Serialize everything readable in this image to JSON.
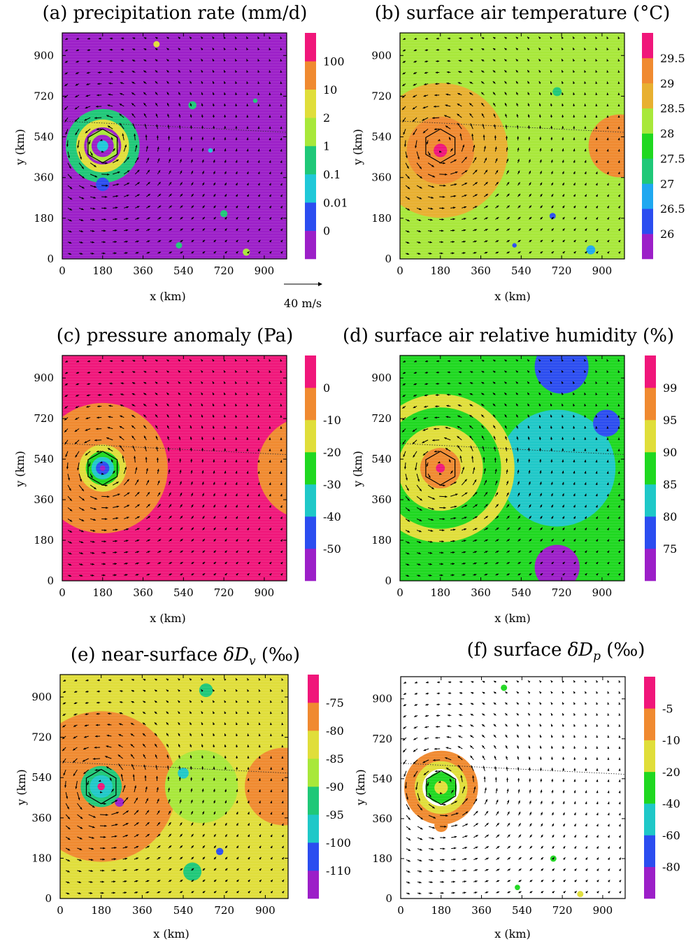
{
  "figure": {
    "reference_vector_label": "40 m/s",
    "reference_vector_speed": 40,
    "vortex_center_km": [
      180,
      500
    ]
  },
  "chart_data": [
    {
      "id": "a",
      "type": "heatmap",
      "title": "(a) precipitation rate (mm/d)",
      "title_text": "(a) precipitation rate (mm/d)",
      "xlabel": "x (km)",
      "ylabel": "y (km)",
      "xlim": [
        0,
        1000
      ],
      "ylim": [
        0,
        1000
      ],
      "xticks": [
        "0",
        "180",
        "360",
        "540",
        "720",
        "900"
      ],
      "yticks": [
        "0",
        "180",
        "360",
        "540",
        "720",
        "900"
      ],
      "colorbar": {
        "labels": [
          "0",
          "0.01",
          "0.1",
          "1",
          "2",
          "10",
          "100"
        ],
        "colors": [
          "#9c1fc8",
          "#2b4df0",
          "#1fc8d8",
          "#1fc878",
          "#a8e83a",
          "#e0de3a",
          "#f08a30",
          "#f0167a"
        ]
      },
      "background_level": 0,
      "features": [
        {
          "kind": "ring",
          "x": 180,
          "y": 500,
          "r": 140,
          "level": 3
        },
        {
          "kind": "ring",
          "x": 180,
          "y": 500,
          "r": 100,
          "level": 5
        },
        {
          "kind": "ring",
          "x": 180,
          "y": 500,
          "r": 60,
          "level": 4
        },
        {
          "kind": "blob",
          "x": 180,
          "y": 500,
          "r": 25,
          "level": 2
        },
        {
          "kind": "blob",
          "x": 180,
          "y": 330,
          "r": 30,
          "level": 1
        },
        {
          "kind": "blob",
          "x": 580,
          "y": 680,
          "r": 18,
          "level": 3
        },
        {
          "kind": "blob",
          "x": 420,
          "y": 950,
          "r": 14,
          "level": 5
        },
        {
          "kind": "blob",
          "x": 720,
          "y": 200,
          "r": 16,
          "level": 3
        },
        {
          "kind": "blob",
          "x": 520,
          "y": 60,
          "r": 14,
          "level": 3
        },
        {
          "kind": "blob",
          "x": 820,
          "y": 30,
          "r": 16,
          "level": 4
        },
        {
          "kind": "blob",
          "x": 660,
          "y": 480,
          "r": 10,
          "level": 2
        },
        {
          "kind": "blob",
          "x": 860,
          "y": 700,
          "r": 10,
          "level": 3
        }
      ]
    },
    {
      "id": "b",
      "type": "heatmap",
      "title": "(b) surface air temperature (°C)",
      "title_text": "(b) surface air temperature (°C)",
      "xlabel": "x (km)",
      "ylabel": "y (km)",
      "xlim": [
        0,
        1000
      ],
      "ylim": [
        0,
        1000
      ],
      "xticks": [
        "0",
        "180",
        "360",
        "540",
        "720",
        "900"
      ],
      "yticks": [
        "0",
        "180",
        "360",
        "540",
        "720",
        "900"
      ],
      "colorbar": {
        "labels": [
          "26",
          "26.5",
          "27",
          "27.5",
          "28",
          "28.5",
          "29",
          "29.5"
        ],
        "colors": [
          "#9c1fc8",
          "#2b4df0",
          "#1fa8f0",
          "#1fc878",
          "#1fd820",
          "#a8e83a",
          "#e8b030",
          "#f08a30",
          "#f0167a"
        ]
      },
      "background_level": 5,
      "features": [
        {
          "kind": "blob",
          "x": 180,
          "y": 480,
          "r": 300,
          "level": 6
        },
        {
          "kind": "blob",
          "x": 180,
          "y": 480,
          "r": 150,
          "level": 7
        },
        {
          "kind": "blob",
          "x": 180,
          "y": 480,
          "r": 30,
          "level": 8
        },
        {
          "kind": "blob",
          "x": 700,
          "y": 520,
          "r": 120,
          "level": 5
        },
        {
          "kind": "blob",
          "x": 980,
          "y": 500,
          "r": 140,
          "level": 7
        },
        {
          "kind": "blob",
          "x": 680,
          "y": 190,
          "r": 14,
          "level": 1
        },
        {
          "kind": "blob",
          "x": 510,
          "y": 60,
          "r": 10,
          "level": 1
        },
        {
          "kind": "blob",
          "x": 850,
          "y": 40,
          "r": 20,
          "level": 2
        },
        {
          "kind": "blob",
          "x": 700,
          "y": 740,
          "r": 20,
          "level": 3
        }
      ]
    },
    {
      "id": "c",
      "type": "heatmap",
      "title": "(c) pressure anomaly (Pa)",
      "title_text": "(c) pressure anomaly (Pa)",
      "xlabel": "x (km)",
      "ylabel": "y (km)",
      "xlim": [
        0,
        1000
      ],
      "ylim": [
        0,
        1000
      ],
      "xticks": [
        "0",
        "180",
        "360",
        "540",
        "720",
        "900"
      ],
      "yticks": [
        "0",
        "180",
        "360",
        "540",
        "720",
        "900"
      ],
      "colorbar": {
        "labels": [
          "-50",
          "-40",
          "-30",
          "-20",
          "-10",
          "0"
        ],
        "colors": [
          "#9c1fc8",
          "#2b4df0",
          "#1fc8c8",
          "#1fd820",
          "#e0de3a",
          "#f08a30",
          "#f0167a"
        ]
      },
      "background_level": 6,
      "features": [
        {
          "kind": "blob",
          "x": 180,
          "y": 500,
          "r": 290,
          "level": 5
        },
        {
          "kind": "blob",
          "x": 1100,
          "y": 500,
          "r": 230,
          "level": 5
        },
        {
          "kind": "blob",
          "x": 180,
          "y": 500,
          "r": 105,
          "level": 4
        },
        {
          "kind": "blob",
          "x": 180,
          "y": 500,
          "r": 75,
          "level": 3
        },
        {
          "kind": "blob",
          "x": 180,
          "y": 500,
          "r": 50,
          "level": 2
        },
        {
          "kind": "blob",
          "x": 180,
          "y": 500,
          "r": 30,
          "level": 1
        },
        {
          "kind": "blob",
          "x": 180,
          "y": 500,
          "r": 12,
          "level": 0
        }
      ]
    },
    {
      "id": "d",
      "type": "heatmap",
      "title": "(d) surface air relative humidity (%)",
      "title_text": "(d) surface air relative humidity (%)",
      "xlabel": "x (km)",
      "ylabel": "y (km)",
      "xlim": [
        0,
        1000
      ],
      "ylim": [
        0,
        1000
      ],
      "xticks": [
        "0",
        "180",
        "360",
        "540",
        "720",
        "900"
      ],
      "yticks": [
        "0",
        "180",
        "360",
        "540",
        "720",
        "900"
      ],
      "colorbar": {
        "labels": [
          "75",
          "80",
          "85",
          "90",
          "95",
          "99"
        ],
        "colors": [
          "#9c1fc8",
          "#2b4df0",
          "#1fc8c8",
          "#1fd820",
          "#e0de3a",
          "#f08a30",
          "#f0167a"
        ]
      },
      "background_level": 3,
      "features": [
        {
          "kind": "blob",
          "x": 700,
          "y": 500,
          "r": 260,
          "level": 2
        },
        {
          "kind": "blob",
          "x": 180,
          "y": 500,
          "r": 330,
          "level": 4
        },
        {
          "kind": "ring",
          "x": 180,
          "y": 500,
          "r": 230,
          "level": 3
        },
        {
          "kind": "blob",
          "x": 180,
          "y": 500,
          "r": 130,
          "level": 4
        },
        {
          "kind": "blob",
          "x": 180,
          "y": 500,
          "r": 90,
          "level": 5
        },
        {
          "kind": "blob",
          "x": 180,
          "y": 500,
          "r": 20,
          "level": 6
        },
        {
          "kind": "blob",
          "x": 700,
          "y": 60,
          "r": 100,
          "level": 0
        },
        {
          "kind": "blob",
          "x": 720,
          "y": 950,
          "r": 120,
          "level": 1
        },
        {
          "kind": "blob",
          "x": 920,
          "y": 700,
          "r": 60,
          "level": 1
        }
      ]
    },
    {
      "id": "e",
      "type": "heatmap",
      "title": "(e) near-surface δDv (‰)",
      "title_text": "(e) near-surface ",
      "title_symbol": "δD",
      "title_sub": "v",
      "title_tail": " (‰)",
      "xlabel": "x (km)",
      "ylabel": "y (km)",
      "xlim": [
        0,
        1000
      ],
      "ylim": [
        0,
        1000
      ],
      "xticks": [
        "0",
        "180",
        "360",
        "540",
        "720",
        "900"
      ],
      "yticks": [
        "0",
        "180",
        "360",
        "540",
        "720",
        "900"
      ],
      "colorbar": {
        "labels": [
          "-110",
          "-100",
          "-95",
          "-90",
          "-85",
          "-80",
          "-75"
        ],
        "colors": [
          "#9c1fc8",
          "#2b4df0",
          "#1fc8c8",
          "#1fc878",
          "#a8e83a",
          "#e0de3a",
          "#f08a30",
          "#f0167a"
        ]
      },
      "background_level": 5,
      "features": [
        {
          "kind": "blob",
          "x": 180,
          "y": 500,
          "r": 330,
          "level": 6
        },
        {
          "kind": "blob",
          "x": 980,
          "y": 500,
          "r": 170,
          "level": 6
        },
        {
          "kind": "blob",
          "x": 620,
          "y": 500,
          "r": 160,
          "level": 4
        },
        {
          "kind": "blob",
          "x": 180,
          "y": 500,
          "r": 90,
          "level": 3
        },
        {
          "kind": "blob",
          "x": 180,
          "y": 500,
          "r": 50,
          "level": 2
        },
        {
          "kind": "blob",
          "x": 180,
          "y": 500,
          "r": 16,
          "level": 7
        },
        {
          "kind": "blob",
          "x": 260,
          "y": 430,
          "r": 20,
          "level": 0
        },
        {
          "kind": "blob",
          "x": 540,
          "y": 560,
          "r": 24,
          "level": 2
        },
        {
          "kind": "blob",
          "x": 700,
          "y": 210,
          "r": 16,
          "level": 1
        },
        {
          "kind": "blob",
          "x": 580,
          "y": 120,
          "r": 40,
          "level": 3
        },
        {
          "kind": "blob",
          "x": 640,
          "y": 930,
          "r": 30,
          "level": 3
        }
      ]
    },
    {
      "id": "f",
      "type": "heatmap",
      "title": "(f) surface δDp (‰)",
      "title_text": "(f) surface ",
      "title_symbol": "δD",
      "title_sub": "p",
      "title_tail": " (‰)",
      "xlabel": "x (km)",
      "ylabel": "y (km)",
      "xlim": [
        0,
        1000
      ],
      "ylim": [
        0,
        1000
      ],
      "xticks": [
        "0",
        "180",
        "360",
        "540",
        "720",
        "900"
      ],
      "yticks": [
        "0",
        "180",
        "360",
        "540",
        "720",
        "900"
      ],
      "colorbar": {
        "labels": [
          "-80",
          "-60",
          "-40",
          "-20",
          "-10",
          "-5"
        ],
        "colors": [
          "#9c1fc8",
          "#2b4df0",
          "#1fc8c8",
          "#1fd820",
          "#e0de3a",
          "#f08a30",
          "#f0167a"
        ]
      },
      "background_level": -1,
      "features": [
        {
          "kind": "ring",
          "x": 180,
          "y": 500,
          "r": 140,
          "level": 5
        },
        {
          "kind": "ring",
          "x": 180,
          "y": 500,
          "r": 100,
          "level": 4
        },
        {
          "kind": "blob",
          "x": 180,
          "y": 500,
          "r": 70,
          "level": 3
        },
        {
          "kind": "blob",
          "x": 180,
          "y": 500,
          "r": 30,
          "level": 4
        },
        {
          "kind": "blob",
          "x": 180,
          "y": 330,
          "r": 30,
          "level": 5
        },
        {
          "kind": "blob",
          "x": 460,
          "y": 950,
          "r": 14,
          "level": 3
        },
        {
          "kind": "blob",
          "x": 680,
          "y": 180,
          "r": 14,
          "level": 3
        },
        {
          "kind": "blob",
          "x": 520,
          "y": 50,
          "r": 12,
          "level": 3
        },
        {
          "kind": "blob",
          "x": 800,
          "y": 20,
          "r": 14,
          "level": 4
        }
      ]
    }
  ]
}
